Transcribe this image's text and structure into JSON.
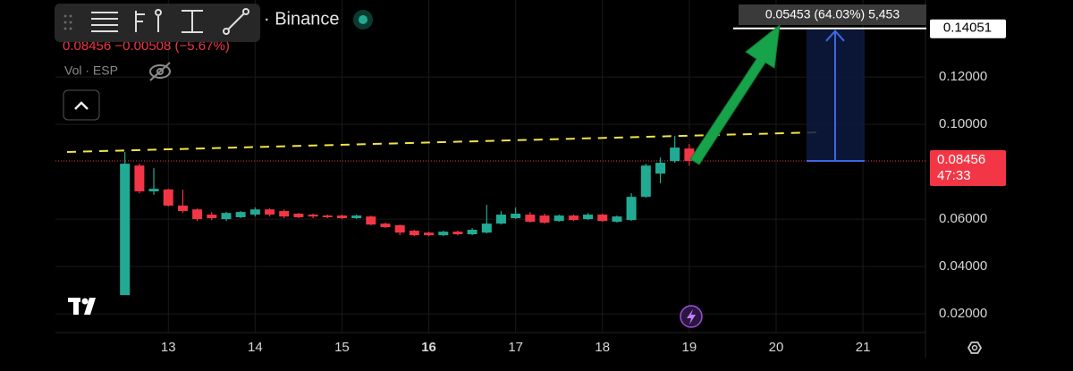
{
  "chart_data": {
    "type": "candlestick",
    "symbol_title": "· Binance",
    "quote_line": "0.08456 −0.00508 (−5.67%)",
    "volume_label": "Vol · ESP",
    "x": [
      12.5,
      12.667,
      12.833,
      13.0,
      13.167,
      13.333,
      13.5,
      13.667,
      13.833,
      14.0,
      14.167,
      14.333,
      14.5,
      14.667,
      14.833,
      15.0,
      15.167,
      15.333,
      15.5,
      15.667,
      15.833,
      16.0,
      16.167,
      16.333,
      16.5,
      16.667,
      16.833,
      17.0,
      17.167,
      17.333,
      17.5,
      17.667,
      17.833,
      18.0,
      18.167,
      18.333,
      18.5,
      18.667,
      18.833,
      19.0
    ],
    "open": [
      0.0279,
      0.0826,
      0.0717,
      0.0725,
      0.0657,
      0.0641,
      0.0619,
      0.06,
      0.0608,
      0.0619,
      0.0641,
      0.0634,
      0.0623,
      0.0619,
      0.0615,
      0.0615,
      0.0604,
      0.0611,
      0.0581,
      0.0574,
      0.0551,
      0.0543,
      0.0532,
      0.0547,
      0.0536,
      0.0543,
      0.0581,
      0.0604,
      0.0619,
      0.0615,
      0.0592,
      0.0615,
      0.06,
      0.0619,
      0.0589,
      0.0596,
      0.0694,
      0.0792,
      0.0845,
      0.0898
    ],
    "high": [
      0.0883,
      0.0834,
      0.0815,
      0.0728,
      0.0724,
      0.0645,
      0.063,
      0.063,
      0.0634,
      0.0649,
      0.0645,
      0.0641,
      0.0626,
      0.0623,
      0.0619,
      0.0619,
      0.0619,
      0.0615,
      0.0585,
      0.0577,
      0.0555,
      0.0547,
      0.0551,
      0.0551,
      0.0562,
      0.066,
      0.0634,
      0.0649,
      0.063,
      0.0623,
      0.0619,
      0.0619,
      0.0626,
      0.0623,
      0.0615,
      0.0709,
      0.0834,
      0.086,
      0.0951,
      0.0917
    ],
    "low": [
      0.0279,
      0.0709,
      0.0702,
      0.0653,
      0.0626,
      0.0592,
      0.0596,
      0.0592,
      0.0604,
      0.0611,
      0.0611,
      0.0604,
      0.0604,
      0.0604,
      0.0604,
      0.06,
      0.06,
      0.0574,
      0.0562,
      0.0532,
      0.0528,
      0.0528,
      0.0528,
      0.0532,
      0.0532,
      0.054,
      0.0577,
      0.06,
      0.0585,
      0.0581,
      0.0589,
      0.0592,
      0.0596,
      0.0589,
      0.0585,
      0.0592,
      0.069,
      0.0751,
      0.0838,
      0.0826
    ],
    "close": [
      0.0834,
      0.0717,
      0.0728,
      0.0657,
      0.0634,
      0.06,
      0.0604,
      0.0626,
      0.063,
      0.0641,
      0.0619,
      0.0611,
      0.0608,
      0.0611,
      0.0608,
      0.0604,
      0.0615,
      0.0577,
      0.0566,
      0.0543,
      0.0532,
      0.0532,
      0.0547,
      0.0536,
      0.0555,
      0.0581,
      0.0619,
      0.0623,
      0.0589,
      0.0585,
      0.0615,
      0.0596,
      0.0619,
      0.0592,
      0.0611,
      0.0694,
      0.0826,
      0.0838,
      0.0902,
      0.08456
    ],
    "up_color": "#22ab94",
    "down_color": "#f23645",
    "xlim": [
      11.7,
      21.72
    ],
    "ylim": [
      0.0121,
      0.1525
    ],
    "xticks": [
      13,
      14,
      15,
      16,
      17,
      18,
      19,
      20,
      21
    ],
    "bold_xtick": 16,
    "yticks": [
      {
        "value": 0.02,
        "label": "0.02000"
      },
      {
        "value": 0.04,
        "label": "0.04000"
      },
      {
        "value": 0.06,
        "label": "0.06000"
      },
      {
        "value": 0.1,
        "label": "0.10000"
      },
      {
        "value": 0.12,
        "label": "0.12000"
      }
    ],
    "grid": true,
    "last_price": 0.08456,
    "countdown": "47:33",
    "measure": {
      "label": "0.05453 (64.03%) 5,453",
      "top": 0.14051
    }
  }
}
